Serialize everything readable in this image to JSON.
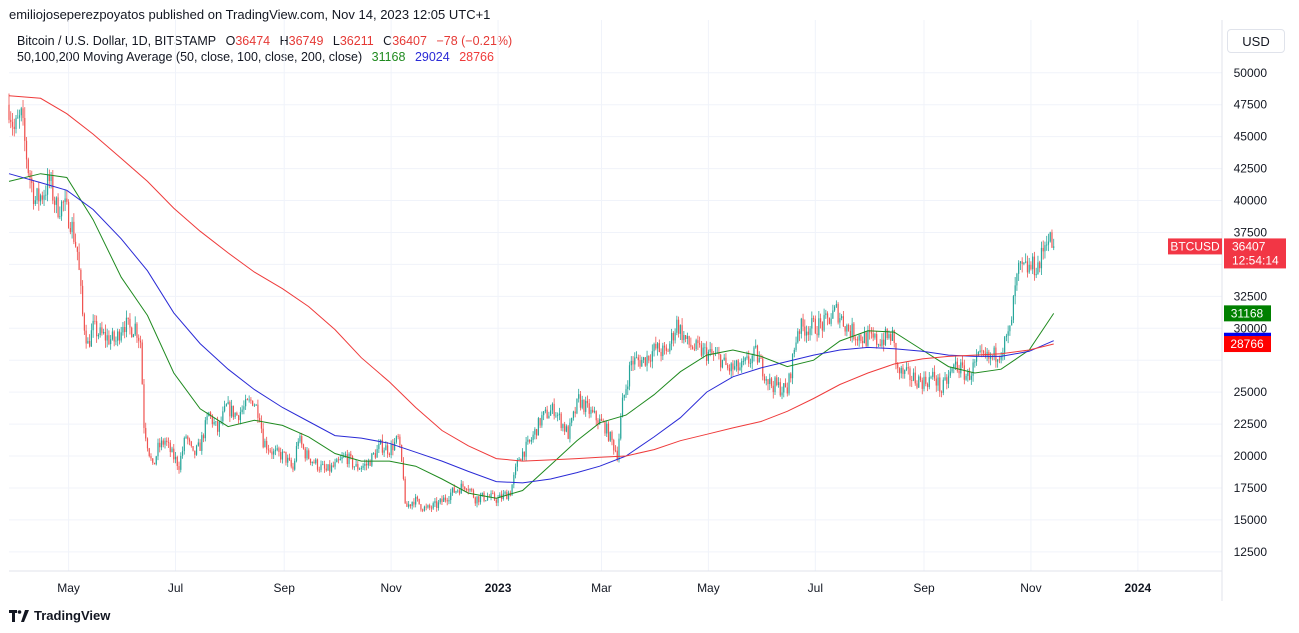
{
  "header": {
    "published": "emiliojoseperezpoyatos published on TradingView.com, Nov 14, 2023 12:05 UTC+1"
  },
  "legend": {
    "symbol": "Bitcoin / U.S. Dollar, 1D, BITSTAMP",
    "o_label": "O",
    "o_value": "36474",
    "h_label": "H",
    "h_value": "36749",
    "l_label": "L",
    "l_value": "36211",
    "c_label": "C",
    "c_value": "36407",
    "change": "−78 (−0.21%)",
    "ma_label": "50,100,200 Moving Average (50, close, 100, close, 200, close)",
    "ma50_value": "31168",
    "ma100_value": "29024",
    "ma200_value": "28766"
  },
  "currency_button": "USD",
  "footer": {
    "brand": "TradingView",
    "logo_icon": "tradingview-logo-icon"
  },
  "badges": {
    "symbol": "BTCUSD",
    "price": "36407",
    "countdown": "12:54:14"
  },
  "colors": {
    "up": "#26a69a",
    "down": "#ef5350",
    "ma50": "#1f8a1f",
    "ma100": "#2a2ad6",
    "ma200": "#ef3b3b",
    "legend_ohlc": "#e53935",
    "ma50_badge": "#008000",
    "ma100_badge": "#0000ee",
    "ma200_badge": "#ff0000",
    "price_badge": "#f23645"
  },
  "chart_data": {
    "type": "line",
    "title": "Bitcoin / U.S. Dollar, 1D, BITSTAMP",
    "y_ticks": [
      12500,
      15000,
      17500,
      20000,
      22500,
      25000,
      27500,
      30000,
      32500,
      35000,
      37500,
      40000,
      42500,
      45000,
      47500,
      50000
    ],
    "y_tick_labels": [
      "12500",
      "15000",
      "17500",
      "20000",
      "22500",
      "25000",
      "",
      "30000",
      "32500",
      "",
      "37500",
      "40000",
      "42500",
      "45000",
      "47500",
      "50000"
    ],
    "ylim": [
      11000,
      51000
    ],
    "xlim": [
      "2022-03-28",
      "2024-02-18"
    ],
    "x_ticks": [
      {
        "date": "2022-05-01",
        "label": "May",
        "bold": false
      },
      {
        "date": "2022-07-01",
        "label": "Jul",
        "bold": false
      },
      {
        "date": "2022-09-01",
        "label": "Sep",
        "bold": false
      },
      {
        "date": "2022-11-01",
        "label": "Nov",
        "bold": false
      },
      {
        "date": "2023-01-01",
        "label": "2023",
        "bold": true
      },
      {
        "date": "2023-03-01",
        "label": "Mar",
        "bold": false
      },
      {
        "date": "2023-05-01",
        "label": "May",
        "bold": false
      },
      {
        "date": "2023-07-01",
        "label": "Jul",
        "bold": false
      },
      {
        "date": "2023-09-01",
        "label": "Sep",
        "bold": false
      },
      {
        "date": "2023-11-01",
        "label": "Nov",
        "bold": false
      },
      {
        "date": "2024-01-01",
        "label": "2024",
        "bold": true
      }
    ],
    "close_series": [
      [
        "2022-03-28",
        47500
      ],
      [
        "2022-03-31",
        45500
      ],
      [
        "2022-04-04",
        46500
      ],
      [
        "2022-04-08",
        42500
      ],
      [
        "2022-04-12",
        40000
      ],
      [
        "2022-04-16",
        40500
      ],
      [
        "2022-04-20",
        41500
      ],
      [
        "2022-04-24",
        39500
      ],
      [
        "2022-04-28",
        39700
      ],
      [
        "2022-05-02",
        38500
      ],
      [
        "2022-05-06",
        36000
      ],
      [
        "2022-05-09",
        31000
      ],
      [
        "2022-05-12",
        28700
      ],
      [
        "2022-05-15",
        30000
      ],
      [
        "2022-05-19",
        29500
      ],
      [
        "2022-05-24",
        29200
      ],
      [
        "2022-05-28",
        29000
      ],
      [
        "2022-06-01",
        30500
      ],
      [
        "2022-06-05",
        29900
      ],
      [
        "2022-06-08",
        30200
      ],
      [
        "2022-06-11",
        29000
      ],
      [
        "2022-06-13",
        22500
      ],
      [
        "2022-06-15",
        21000
      ],
      [
        "2022-06-18",
        19000
      ],
      [
        "2022-06-21",
        20600
      ],
      [
        "2022-06-25",
        21200
      ],
      [
        "2022-06-29",
        20100
      ],
      [
        "2022-07-03",
        19300
      ],
      [
        "2022-07-07",
        21600
      ],
      [
        "2022-07-11",
        20000
      ],
      [
        "2022-07-15",
        20800
      ],
      [
        "2022-07-20",
        23300
      ],
      [
        "2022-07-25",
        22000
      ],
      [
        "2022-07-30",
        23800
      ],
      [
        "2022-08-05",
        23200
      ],
      [
        "2022-08-10",
        23900
      ],
      [
        "2022-08-14",
        24400
      ],
      [
        "2022-08-18",
        23300
      ],
      [
        "2022-08-20",
        21200
      ],
      [
        "2022-08-26",
        20200
      ],
      [
        "2022-09-01",
        20000
      ],
      [
        "2022-09-06",
        18900
      ],
      [
        "2022-09-09",
        21400
      ],
      [
        "2022-09-13",
        20200
      ],
      [
        "2022-09-19",
        19400
      ],
      [
        "2022-09-25",
        18800
      ],
      [
        "2022-10-01",
        19300
      ],
      [
        "2022-10-06",
        20000
      ],
      [
        "2022-10-12",
        19100
      ],
      [
        "2022-10-18",
        19300
      ],
      [
        "2022-10-26",
        20800
      ],
      [
        "2022-10-31",
        20500
      ],
      [
        "2022-11-05",
        21300
      ],
      [
        "2022-11-08",
        18500
      ],
      [
        "2022-11-09",
        15900
      ],
      [
        "2022-11-14",
        16600
      ],
      [
        "2022-11-21",
        15800
      ],
      [
        "2022-11-28",
        16200
      ],
      [
        "2022-12-05",
        17100
      ],
      [
        "2022-12-14",
        17800
      ],
      [
        "2022-12-19",
        16700
      ],
      [
        "2022-12-26",
        16800
      ],
      [
        "2023-01-01",
        16600
      ],
      [
        "2023-01-08",
        17200
      ],
      [
        "2023-01-13",
        19900
      ],
      [
        "2023-01-19",
        21000
      ],
      [
        "2023-01-26",
        23000
      ],
      [
        "2023-02-02",
        23700
      ],
      [
        "2023-02-10",
        21700
      ],
      [
        "2023-02-16",
        24400
      ],
      [
        "2023-02-24",
        23200
      ],
      [
        "2023-03-03",
        22300
      ],
      [
        "2023-03-10",
        20200
      ],
      [
        "2023-03-13",
        24100
      ],
      [
        "2023-03-18",
        27400
      ],
      [
        "2023-03-25",
        27500
      ],
      [
        "2023-04-01",
        28400
      ],
      [
        "2023-04-07",
        28000
      ],
      [
        "2023-04-13",
        30400
      ],
      [
        "2023-04-19",
        28800
      ],
      [
        "2023-04-25",
        28300
      ],
      [
        "2023-05-01",
        28000
      ],
      [
        "2023-05-08",
        27600
      ],
      [
        "2023-05-12",
        26800
      ],
      [
        "2023-05-20",
        26900
      ],
      [
        "2023-05-28",
        28000
      ],
      [
        "2023-06-05",
        25700
      ],
      [
        "2023-06-15",
        25100
      ],
      [
        "2023-06-21",
        30000
      ],
      [
        "2023-06-28",
        30100
      ],
      [
        "2023-07-06",
        30300
      ],
      [
        "2023-07-13",
        31400
      ],
      [
        "2023-07-20",
        29900
      ],
      [
        "2023-07-27",
        29300
      ],
      [
        "2023-08-05",
        29000
      ],
      [
        "2023-08-14",
        29400
      ],
      [
        "2023-08-17",
        26600
      ],
      [
        "2023-08-24",
        26200
      ],
      [
        "2023-09-01",
        25800
      ],
      [
        "2023-09-07",
        26200
      ],
      [
        "2023-09-11",
        25100
      ],
      [
        "2023-09-19",
        27200
      ],
      [
        "2023-09-26",
        26200
      ],
      [
        "2023-10-02",
        27600
      ],
      [
        "2023-10-09",
        27600
      ],
      [
        "2023-10-16",
        28500
      ],
      [
        "2023-10-20",
        29700
      ],
      [
        "2023-10-23",
        33000
      ],
      [
        "2023-10-25",
        34500
      ],
      [
        "2023-10-31",
        34700
      ],
      [
        "2023-11-06",
        35000
      ],
      [
        "2023-11-09",
        36700
      ],
      [
        "2023-11-10",
        37300
      ],
      [
        "2023-11-14",
        36407
      ]
    ],
    "ma_series": [
      {
        "name": "MA 50",
        "last": 31168,
        "points": [
          [
            "2022-03-28",
            41500
          ],
          [
            "2022-04-15",
            42100
          ],
          [
            "2022-04-30",
            41800
          ],
          [
            "2022-05-15",
            38500
          ],
          [
            "2022-05-31",
            34000
          ],
          [
            "2022-06-15",
            31000
          ],
          [
            "2022-06-30",
            26500
          ],
          [
            "2022-07-15",
            23700
          ],
          [
            "2022-07-31",
            22300
          ],
          [
            "2022-08-15",
            22800
          ],
          [
            "2022-08-31",
            22400
          ],
          [
            "2022-09-15",
            21500
          ],
          [
            "2022-09-30",
            20200
          ],
          [
            "2022-10-15",
            19600
          ],
          [
            "2022-10-31",
            19600
          ],
          [
            "2022-11-15",
            19200
          ],
          [
            "2022-11-30",
            18200
          ],
          [
            "2022-12-15",
            17100
          ],
          [
            "2022-12-31",
            16700
          ],
          [
            "2023-01-15",
            17300
          ],
          [
            "2023-01-31",
            19300
          ],
          [
            "2023-02-15",
            21200
          ],
          [
            "2023-02-28",
            22600
          ],
          [
            "2023-03-15",
            23200
          ],
          [
            "2023-03-31",
            24800
          ],
          [
            "2023-04-15",
            26600
          ],
          [
            "2023-04-30",
            27900
          ],
          [
            "2023-05-15",
            28300
          ],
          [
            "2023-05-31",
            27800
          ],
          [
            "2023-06-15",
            27000
          ],
          [
            "2023-06-30",
            27500
          ],
          [
            "2023-07-15",
            29000
          ],
          [
            "2023-07-31",
            29800
          ],
          [
            "2023-08-15",
            29700
          ],
          [
            "2023-08-31",
            28300
          ],
          [
            "2023-09-15",
            27000
          ],
          [
            "2023-09-30",
            26500
          ],
          [
            "2023-10-15",
            26800
          ],
          [
            "2023-10-31",
            28300
          ],
          [
            "2023-11-14",
            31168
          ]
        ]
      },
      {
        "name": "MA 100",
        "last": 29024,
        "points": [
          [
            "2022-03-28",
            42100
          ],
          [
            "2022-04-15",
            41400
          ],
          [
            "2022-04-30",
            40800
          ],
          [
            "2022-05-15",
            39300
          ],
          [
            "2022-05-31",
            37000
          ],
          [
            "2022-06-15",
            34500
          ],
          [
            "2022-06-30",
            31200
          ],
          [
            "2022-07-15",
            28800
          ],
          [
            "2022-07-31",
            26800
          ],
          [
            "2022-08-15",
            25200
          ],
          [
            "2022-08-31",
            23800
          ],
          [
            "2022-09-15",
            22700
          ],
          [
            "2022-09-30",
            21600
          ],
          [
            "2022-10-15",
            21400
          ],
          [
            "2022-10-31",
            21000
          ],
          [
            "2022-11-15",
            20300
          ],
          [
            "2022-11-30",
            19600
          ],
          [
            "2022-12-15",
            18800
          ],
          [
            "2022-12-31",
            18000
          ],
          [
            "2023-01-15",
            17900
          ],
          [
            "2023-01-31",
            18200
          ],
          [
            "2023-02-15",
            18700
          ],
          [
            "2023-02-28",
            19200
          ],
          [
            "2023-03-15",
            20000
          ],
          [
            "2023-03-31",
            21500
          ],
          [
            "2023-04-15",
            23000
          ],
          [
            "2023-04-30",
            25000
          ],
          [
            "2023-05-15",
            26200
          ],
          [
            "2023-05-31",
            26900
          ],
          [
            "2023-06-15",
            27400
          ],
          [
            "2023-06-30",
            27900
          ],
          [
            "2023-07-15",
            28300
          ],
          [
            "2023-07-31",
            28500
          ],
          [
            "2023-08-15",
            28400
          ],
          [
            "2023-08-31",
            28200
          ],
          [
            "2023-09-15",
            27900
          ],
          [
            "2023-09-30",
            27800
          ],
          [
            "2023-10-15",
            27800
          ],
          [
            "2023-10-31",
            28200
          ],
          [
            "2023-11-14",
            29024
          ]
        ]
      },
      {
        "name": "MA 200",
        "last": 28766,
        "points": [
          [
            "2022-03-28",
            48200
          ],
          [
            "2022-04-15",
            48000
          ],
          [
            "2022-04-30",
            46800
          ],
          [
            "2022-05-15",
            45200
          ],
          [
            "2022-05-31",
            43300
          ],
          [
            "2022-06-15",
            41500
          ],
          [
            "2022-06-30",
            39400
          ],
          [
            "2022-07-15",
            37600
          ],
          [
            "2022-07-31",
            35900
          ],
          [
            "2022-08-15",
            34400
          ],
          [
            "2022-08-31",
            33100
          ],
          [
            "2022-09-15",
            31700
          ],
          [
            "2022-09-30",
            29900
          ],
          [
            "2022-10-15",
            27700
          ],
          [
            "2022-10-31",
            25800
          ],
          [
            "2022-11-15",
            23800
          ],
          [
            "2022-11-30",
            22000
          ],
          [
            "2022-12-15",
            20800
          ],
          [
            "2022-12-31",
            19800
          ],
          [
            "2023-01-15",
            19600
          ],
          [
            "2023-01-31",
            19700
          ],
          [
            "2023-02-15",
            19800
          ],
          [
            "2023-02-28",
            19900
          ],
          [
            "2023-03-15",
            20000
          ],
          [
            "2023-03-31",
            20500
          ],
          [
            "2023-04-15",
            21200
          ],
          [
            "2023-04-30",
            21700
          ],
          [
            "2023-05-15",
            22200
          ],
          [
            "2023-05-31",
            22700
          ],
          [
            "2023-06-15",
            23500
          ],
          [
            "2023-06-30",
            24500
          ],
          [
            "2023-07-15",
            25600
          ],
          [
            "2023-07-31",
            26500
          ],
          [
            "2023-08-15",
            27200
          ],
          [
            "2023-08-31",
            27600
          ],
          [
            "2023-09-15",
            27800
          ],
          [
            "2023-09-30",
            27900
          ],
          [
            "2023-10-15",
            28000
          ],
          [
            "2023-10-31",
            28300
          ],
          [
            "2023-11-14",
            28766
          ]
        ]
      }
    ],
    "grid": true,
    "legend_placement": "top-left"
  }
}
